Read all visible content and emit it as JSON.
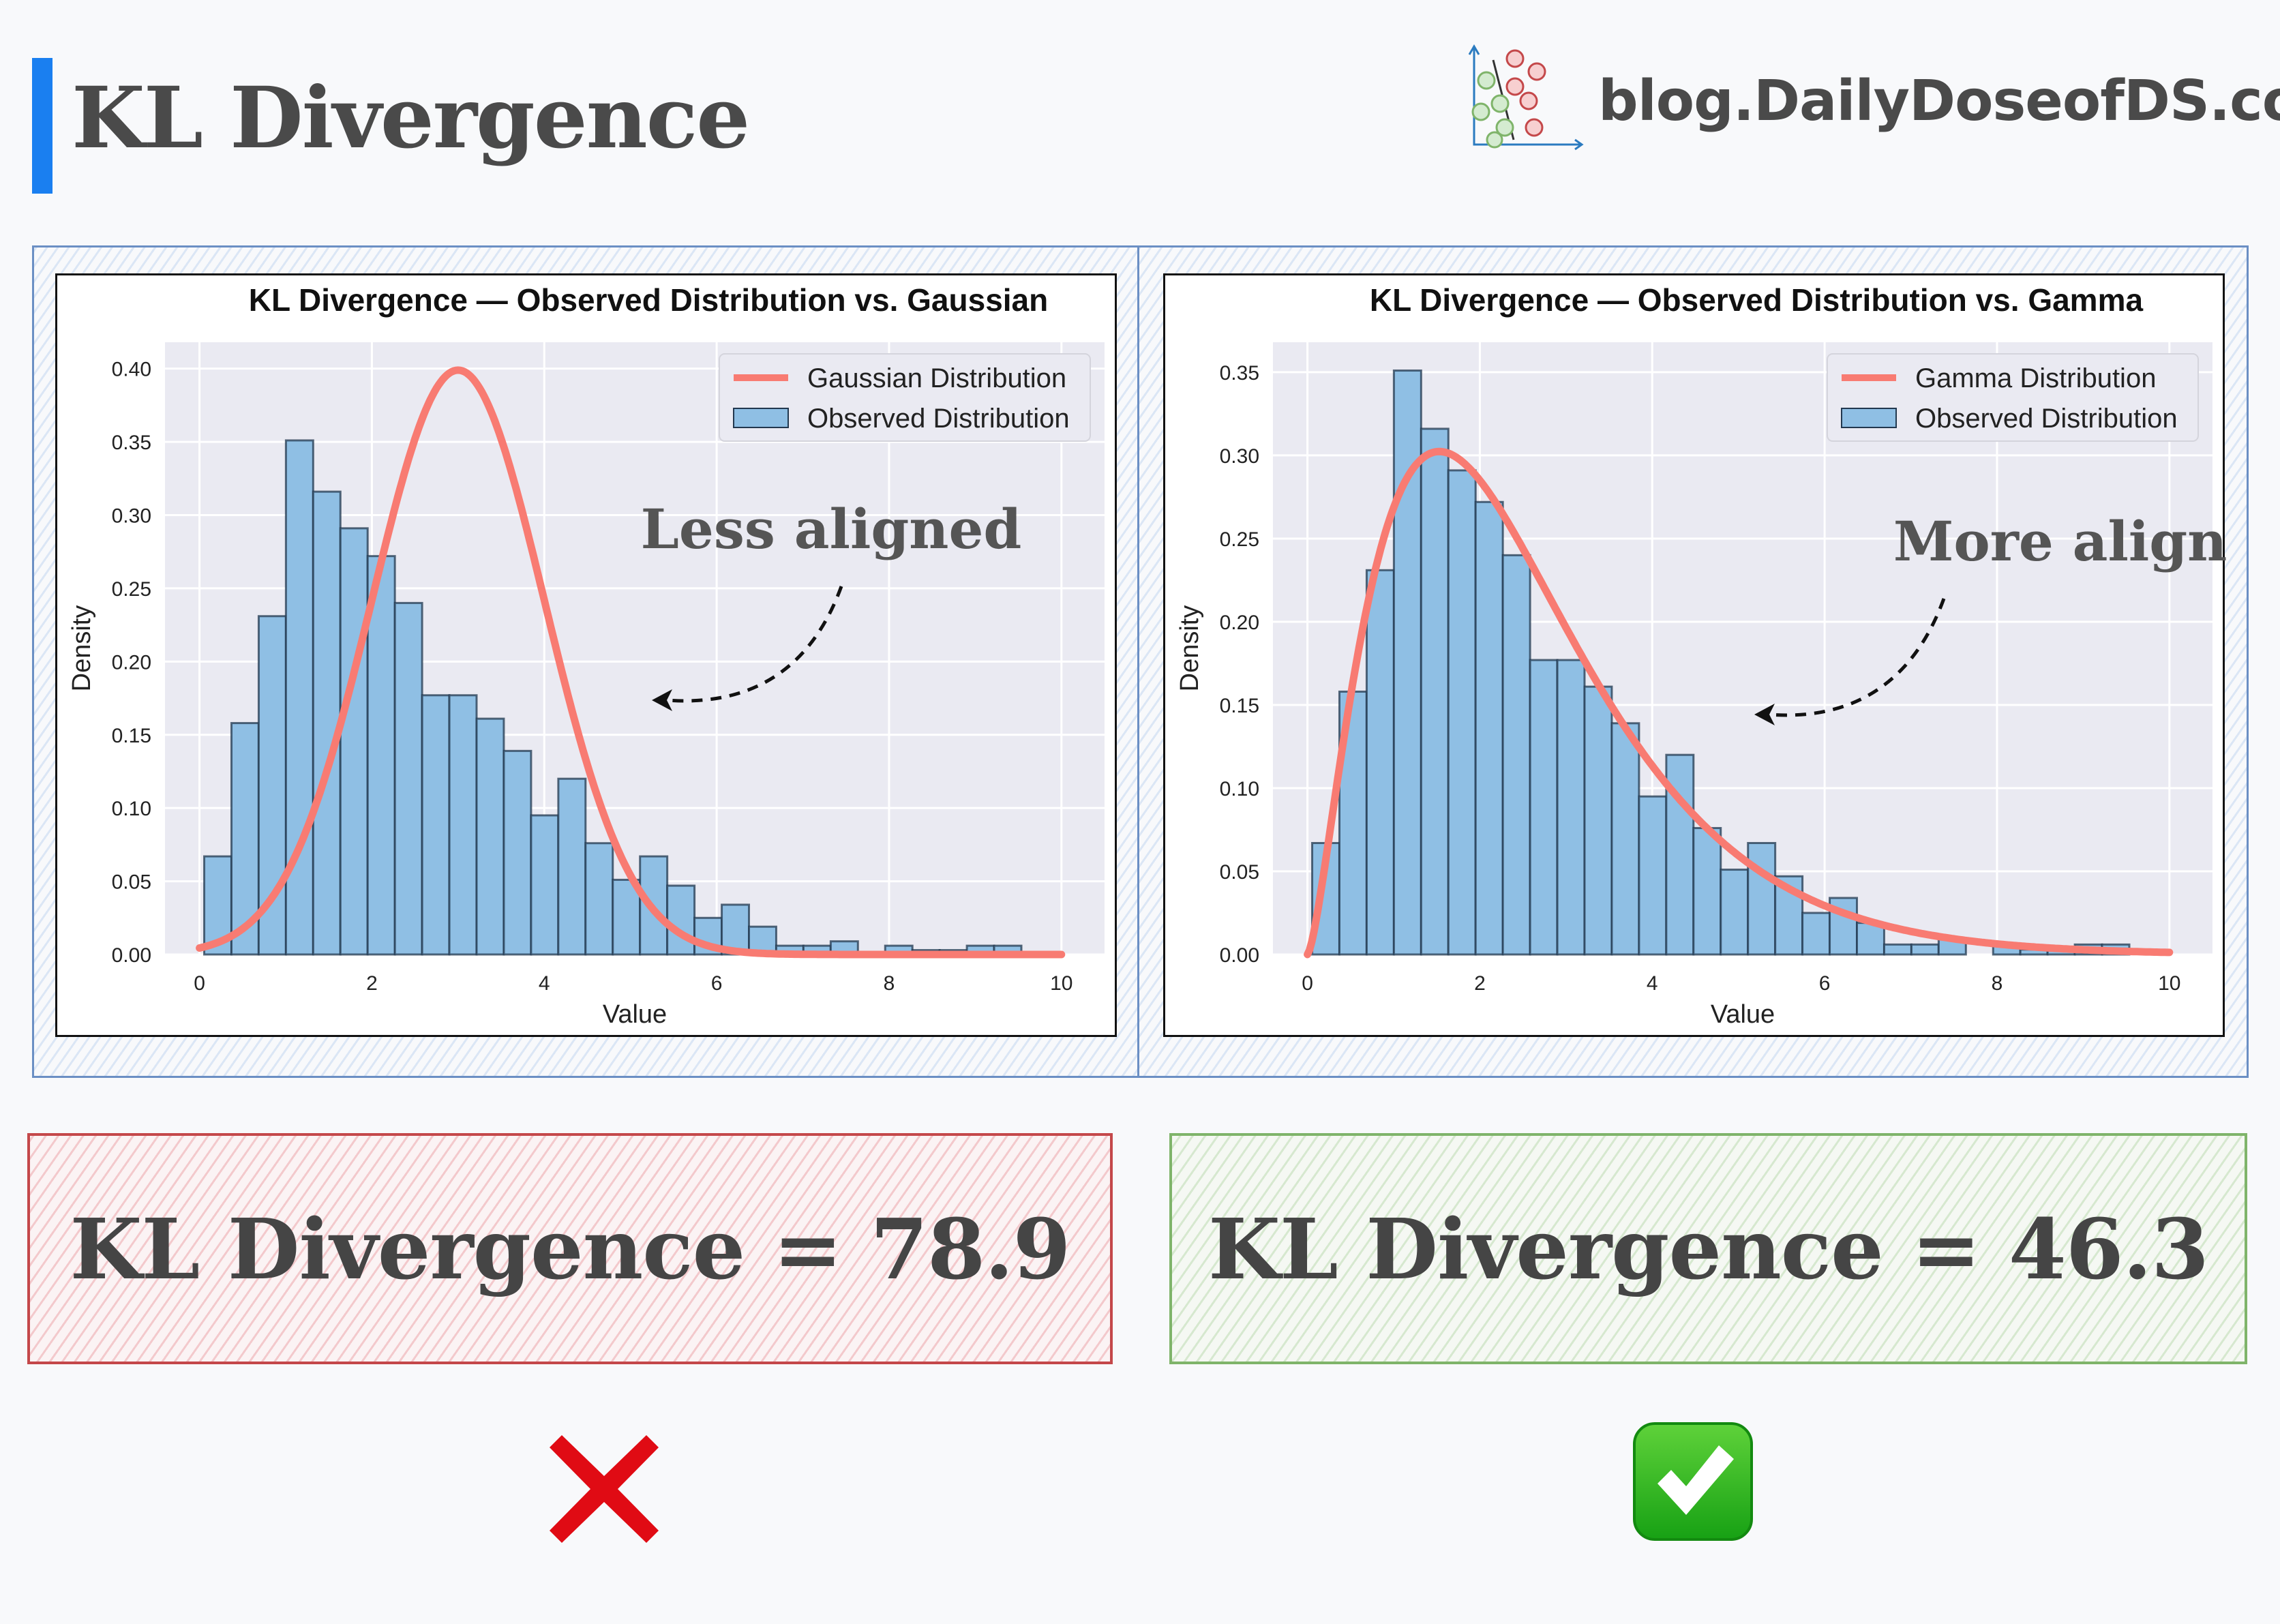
{
  "header": {
    "title": "KL Divergence",
    "brand": "blog.DailyDoseofDS.com",
    "accent_color": "#1a7ff0"
  },
  "chart_data": [
    {
      "type": "bar",
      "title": "KL Divergence — Observed Distribution  vs. Gaussian",
      "xlabel": "Value",
      "ylabel": "Density",
      "xlim": [
        -0.4,
        10.5
      ],
      "ylim": [
        0,
        0.418
      ],
      "xticks": [
        "0",
        "2",
        "4",
        "6",
        "8",
        "10"
      ],
      "yticks": [
        "0.00",
        "0.05",
        "0.10",
        "0.15",
        "0.20",
        "0.25",
        "0.30",
        "0.35",
        "0.40"
      ],
      "grid": true,
      "legend_position": "top-right",
      "histogram": {
        "name": "Observed Distribution",
        "bin_start": 0.055,
        "bin_width": 0.316,
        "values": [
          0.067,
          0.158,
          0.231,
          0.351,
          0.316,
          0.291,
          0.272,
          0.24,
          0.177,
          0.177,
          0.161,
          0.139,
          0.095,
          0.12,
          0.076,
          0.051,
          0.067,
          0.047,
          0.025,
          0.034,
          0.019,
          0.006,
          0.006,
          0.009,
          0,
          0.006,
          0.003,
          0.003,
          0.006,
          0.006
        ],
        "color": "#8fbfe4"
      },
      "curve": {
        "name": "Gaussian Distribution",
        "distribution": "normal",
        "mean": 3,
        "std": 1,
        "x_range": [
          0,
          10
        ],
        "color": "#f87b72"
      },
      "annotation": "Less aligned"
    },
    {
      "type": "bar",
      "title": "KL Divergence — Observed Distribution  vs. Gamma",
      "xlabel": "Value",
      "ylabel": "Density",
      "xlim": [
        -0.4,
        10.5
      ],
      "ylim": [
        0,
        0.368
      ],
      "xticks": [
        "0",
        "2",
        "4",
        "6",
        "8",
        "10"
      ],
      "yticks": [
        "0.00",
        "0.05",
        "0.10",
        "0.15",
        "0.20",
        "0.25",
        "0.30",
        "0.35"
      ],
      "grid": true,
      "legend_position": "top-right",
      "histogram": {
        "name": "Observed Distribution",
        "bin_start": 0.055,
        "bin_width": 0.316,
        "values": [
          0.067,
          0.158,
          0.231,
          0.351,
          0.316,
          0.291,
          0.272,
          0.24,
          0.177,
          0.177,
          0.161,
          0.139,
          0.095,
          0.12,
          0.076,
          0.051,
          0.067,
          0.047,
          0.025,
          0.034,
          0.019,
          0.006,
          0.006,
          0.009,
          0,
          0.006,
          0.003,
          0.003,
          0.006,
          0.006
        ],
        "color": "#8fbfe4"
      },
      "curve": {
        "name": "Gamma Distribution",
        "distribution": "gamma",
        "shape": 2.5,
        "scale": 1.02,
        "x_range": [
          0,
          10
        ],
        "color": "#f87b72"
      },
      "annotation": "More aligned"
    }
  ],
  "results": {
    "left": {
      "text": "KL Divergence = 78.9",
      "verdict": "cross-mark-icon",
      "color": "#c4484a"
    },
    "right": {
      "text": "KL Divergence = 46.3",
      "verdict": "check-mark-icon",
      "color": "#7fb46a"
    }
  }
}
